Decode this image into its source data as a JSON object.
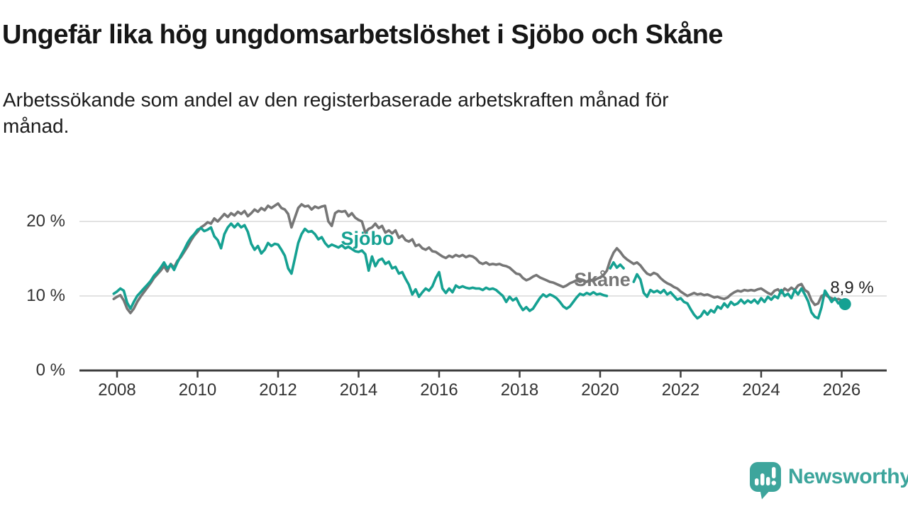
{
  "header": {
    "title": "Ungefär lika hög ungdomsarbetslöshet i Sjöbo och Skåne",
    "subtitle_line1": "Arbetssökande som andel av den registerbaserade arbetskraften månad för",
    "subtitle_line2": "månad."
  },
  "chart_data": {
    "type": "line",
    "unit": "%",
    "frequency": "monthly",
    "grid": "horizontal-only",
    "legend_position": "inline-labels",
    "ylim": [
      0,
      24
    ],
    "x_axis": {
      "ticks": [
        {
          "value": 2008,
          "label": "2008"
        },
        {
          "value": 2010,
          "label": "2010"
        },
        {
          "value": 2012,
          "label": "2012"
        },
        {
          "value": 2014,
          "label": "2014"
        },
        {
          "value": 2016,
          "label": "2016"
        },
        {
          "value": 2018,
          "label": "2018"
        },
        {
          "value": 2020,
          "label": "2020"
        },
        {
          "value": 2022,
          "label": "2022"
        },
        {
          "value": 2024,
          "label": "2024"
        },
        {
          "value": 2026,
          "label": "2026"
        }
      ]
    },
    "y_axis": {
      "ticks": [
        {
          "value": 0,
          "label": "0 %"
        },
        {
          "value": 10,
          "label": "10 %"
        },
        {
          "value": 20,
          "label": "20 %"
        }
      ]
    },
    "series": [
      {
        "name": "Sjöbo",
        "color": "#15a192",
        "end_dot": true,
        "latest_label": "8,9 %",
        "segments": [
          {
            "start": "2007-12",
            "values": [
              10.3,
              10.6,
              11.0,
              10.7,
              9.1,
              8.3,
              9.2,
              10.0,
              10.5,
              11.0,
              11.5,
              12.0,
              12.7,
              13.2,
              13.8,
              14.5,
              13.7,
              14.2,
              13.5,
              14.5,
              15.4,
              16.2,
              17.1,
              17.8,
              18.3,
              18.9,
              19.1,
              18.7,
              18.9,
              19.2,
              18.0,
              17.5,
              16.4,
              18.3,
              19.2,
              19.7,
              19.2,
              19.7,
              19.2,
              19.5,
              18.6,
              17.0,
              16.2,
              16.7,
              15.7,
              16.2,
              17.1,
              16.7,
              17.0,
              16.9,
              16.2,
              15.4,
              13.7,
              13.0,
              15.0,
              17.1,
              18.3,
              19.0,
              18.6,
              18.7,
              18.3,
              17.6,
              17.9,
              17.1,
              16.6,
              16.9,
              16.7,
              16.5,
              16.8,
              16.4,
              16.6,
              16.3,
              16.0,
              15.9,
              16.1,
              15.6,
              13.4,
              15.3,
              14.0,
              14.8,
              15.0,
              14.3,
              14.6,
              13.7,
              13.9,
              13.0,
              13.2,
              12.3,
              11.5,
              10.2,
              10.9,
              9.9,
              10.5,
              11.0,
              10.7,
              11.3,
              12.4,
              13.2,
              11.0,
              10.4,
              11.0,
              10.5,
              11.4,
              11.1,
              11.3,
              11.1,
              11.0,
              11.1,
              11.0,
              11.0,
              10.8,
              11.1,
              10.9,
              11.0,
              10.8,
              10.4,
              10.0,
              9.2,
              9.9,
              9.4,
              9.7,
              8.8,
              8.1,
              8.5,
              8.0,
              8.3,
              9.0,
              9.7,
              10.2,
              9.9,
              10.2,
              10.0,
              9.7,
              9.2,
              8.6,
              8.3,
              8.6,
              9.2,
              9.8,
              10.3,
              10.1,
              10.4,
              10.2,
              10.5,
              10.2,
              10.3,
              10.1,
              10.0
            ]
          },
          {
            "start": "2020-04",
            "values": [
              13.7,
              14.5,
              13.8,
              14.2,
              13.7
            ]
          },
          {
            "start": "2020-11",
            "values": [
              11.9,
              12.9,
              12.2,
              10.4,
              9.9,
              10.8,
              10.5,
              10.7,
              10.4,
              10.8,
              10.2,
              10.5,
              10.0,
              9.5,
              9.7,
              9.2,
              9.0,
              8.2,
              7.5,
              7.0,
              7.3,
              8.0,
              7.5,
              8.1,
              7.8,
              8.6,
              8.3,
              9.0,
              8.5,
              9.2,
              8.8,
              9.0,
              9.5,
              9.0,
              9.4,
              9.1,
              9.5,
              9.0,
              9.7,
              9.2,
              9.9,
              9.5,
              10.0,
              9.7,
              10.8,
              10.0,
              10.3,
              9.7,
              10.8,
              10.2,
              11.0,
              10.2,
              9.3,
              7.8,
              7.2,
              7.0,
              8.5,
              10.7,
              10.0,
              9.2,
              9.7,
              9.0,
              9.4,
              8.9
            ]
          }
        ]
      },
      {
        "name": "Skåne",
        "color": "#767676",
        "end_dot": false,
        "segments": [
          {
            "start": "2007-12",
            "values": [
              9.6,
              9.9,
              10.1,
              9.4,
              8.3,
              7.7,
              8.3,
              9.2,
              9.9,
              10.5,
              11.1,
              11.7,
              12.4,
              12.9,
              13.4,
              14.0,
              13.3,
              14.3,
              13.8,
              14.7,
              15.2,
              15.9,
              16.6,
              17.4,
              18.1,
              18.6,
              19.2,
              19.5,
              19.9,
              19.7,
              20.4,
              20.0,
              20.5,
              21.0,
              20.6,
              21.1,
              20.8,
              21.3,
              21.0,
              21.4,
              20.7,
              21.1,
              21.6,
              21.3,
              21.8,
              21.5,
              22.1,
              21.8,
              22.1,
              22.4,
              21.8,
              21.6,
              21.0,
              19.2,
              20.5,
              21.8,
              22.3,
              22.0,
              22.1,
              21.6,
              22.0,
              21.8,
              22.0,
              22.1,
              20.0,
              19.4,
              21.1,
              21.4,
              21.3,
              21.4,
              20.7,
              21.1,
              20.5,
              20.2,
              20.0,
              18.5,
              19.0,
              19.2,
              19.7,
              19.1,
              19.4,
              18.5,
              18.8,
              18.4,
              18.8,
              17.8,
              18.1,
              17.5,
              17.3,
              17.6,
              16.7,
              16.9,
              16.4,
              16.2,
              16.5,
              16.0,
              15.9,
              15.6,
              15.3,
              15.1,
              15.4,
              15.2,
              15.5,
              15.3,
              15.5,
              15.2,
              15.4,
              15.3,
              15.0,
              14.5,
              14.3,
              14.5,
              14.2,
              14.3,
              14.2,
              14.3,
              14.1,
              14.0,
              13.8,
              13.4,
              13.0,
              12.9,
              12.4,
              12.1,
              12.3,
              12.6,
              12.8,
              12.5,
              12.3,
              12.1,
              11.9,
              11.8,
              11.6,
              11.4,
              11.2,
              11.4,
              11.7,
              11.9,
              12.1,
              11.9,
              12.1,
              11.9,
              12.2,
              12.0,
              12.3,
              12.5,
              12.8,
              13.4,
              14.8,
              15.8,
              16.4,
              15.9,
              15.3,
              14.9,
              14.6,
              14.3,
              14.5,
              14.1,
              13.5,
              13.0,
              12.8,
              13.1,
              12.9,
              12.4,
              12.0,
              11.7,
              11.5,
              11.2,
              11.0,
              10.6,
              10.3,
              10.0,
              10.2,
              10.4,
              10.2,
              10.3,
              10.1,
              10.2,
              10.0,
              9.8,
              9.9,
              9.7,
              9.6,
              9.8,
              10.2,
              10.5,
              10.7,
              10.6,
              10.8,
              10.7,
              10.8,
              10.7,
              10.9,
              11.0,
              10.7,
              10.4,
              10.2,
              10.7,
              10.9,
              10.4,
              11.0,
              10.7,
              11.1,
              10.8,
              11.4,
              11.6,
              10.8,
              10.5,
              9.4,
              8.8,
              9.0,
              10.0,
              10.2,
              9.9,
              9.7,
              9.5,
              9.6,
              9.4
            ]
          }
        ]
      }
    ]
  },
  "branding": {
    "name": "Newsworthy",
    "color": "#3da59c"
  }
}
